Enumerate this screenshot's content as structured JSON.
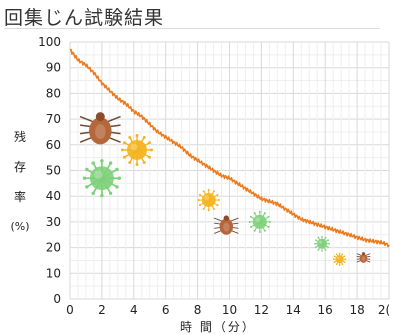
{
  "page": {
    "title": "回集じん試験結果"
  },
  "chart_data": {
    "type": "line",
    "title": "回集じん試験結果",
    "ylabel_chars": [
      "残",
      "存",
      "率"
    ],
    "ylabel_unit": "(%)",
    "xlabel": "時 間（分）",
    "xlim": [
      0,
      20
    ],
    "ylim": [
      0,
      100
    ],
    "xticks": [
      "0",
      "2",
      "4",
      "6",
      "8",
      "10",
      "12",
      "14",
      "16",
      "18",
      "2("
    ],
    "yticks": [
      "0",
      "10",
      "20",
      "30",
      "40",
      "50",
      "60",
      "70",
      "80",
      "90",
      "100"
    ],
    "grid": true,
    "line_color": "#ee7a1e",
    "series": [
      {
        "x": [
          0,
          0.5,
          1,
          1.5,
          2,
          2.5,
          3,
          3.5,
          4,
          4.5,
          5,
          5.5,
          6,
          6.5,
          7,
          7.5,
          8,
          8.5,
          9,
          9.5,
          10,
          10.5,
          11,
          11.5,
          12,
          12.5,
          13,
          13.5,
          14,
          14.5,
          15,
          15.5,
          16,
          16.5,
          17,
          17.5,
          18,
          18.5,
          19,
          19.5,
          20
        ],
        "values": [
          97,
          93,
          91,
          88,
          84,
          81,
          78,
          76,
          73,
          71,
          68,
          65,
          63,
          61,
          59,
          56,
          54,
          52,
          50,
          48,
          47,
          45,
          43,
          41,
          39,
          38,
          37,
          35,
          33,
          31,
          30,
          29,
          28,
          27,
          26,
          25,
          24,
          23,
          22.5,
          22,
          21
        ]
      }
    ],
    "particles": [
      {
        "kind": "mite",
        "x": 1.9,
        "y": 66,
        "color": "#b5673b",
        "size": 15
      },
      {
        "kind": "virus",
        "x": 4.2,
        "y": 58,
        "color": "#f5b21c",
        "size": 10
      },
      {
        "kind": "virus",
        "x": 2.0,
        "y": 47,
        "color": "#7ed07a",
        "size": 12
      },
      {
        "kind": "virus",
        "x": 8.7,
        "y": 38.5,
        "color": "#f5b21c",
        "size": 7
      },
      {
        "kind": "mite",
        "x": 9.8,
        "y": 28.5,
        "color": "#b5673b",
        "size": 9
      },
      {
        "kind": "virus",
        "x": 11.9,
        "y": 30,
        "color": "#7ed07a",
        "size": 7
      },
      {
        "kind": "virus",
        "x": 15.8,
        "y": 21.5,
        "color": "#7ed07a",
        "size": 5
      },
      {
        "kind": "virus",
        "x": 16.9,
        "y": 15.5,
        "color": "#f5b21c",
        "size": 4
      },
      {
        "kind": "mite",
        "x": 18.4,
        "y": 16,
        "color": "#b5673b",
        "size": 5
      }
    ]
  }
}
